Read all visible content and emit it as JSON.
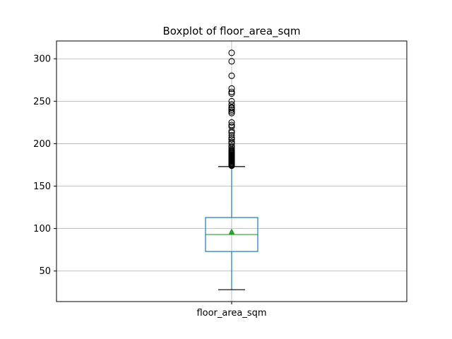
{
  "chart_data": {
    "type": "boxplot",
    "title": "Boxplot of floor_area_sqm",
    "xlabel": "",
    "ylabel": "",
    "categories": [
      "floor_area_sqm"
    ],
    "ylim": [
      14,
      321
    ],
    "yticks": [
      50,
      100,
      150,
      200,
      250,
      300
    ],
    "grid": true,
    "boxes": [
      {
        "category": "floor_area_sqm",
        "whisker_low": 28,
        "q1": 73,
        "median": 93,
        "mean": 96,
        "q3": 113,
        "whisker_high": 173,
        "outliers": [
          174,
          175,
          176,
          177,
          178,
          179,
          180,
          181,
          182,
          183,
          184,
          185,
          186,
          187,
          188,
          189,
          190,
          191,
          192,
          193,
          195,
          197,
          200,
          202,
          205,
          207,
          210,
          213,
          215,
          220,
          222,
          225,
          236,
          238,
          240,
          242,
          243,
          246,
          250,
          259,
          261,
          265,
          280,
          297,
          307
        ]
      }
    ],
    "colors": {
      "box": "#1f77b4",
      "median": "#2ca02c",
      "mean": "#2ca02c",
      "whisker_cap": "#000000",
      "grid": "#b0b0b0"
    }
  }
}
